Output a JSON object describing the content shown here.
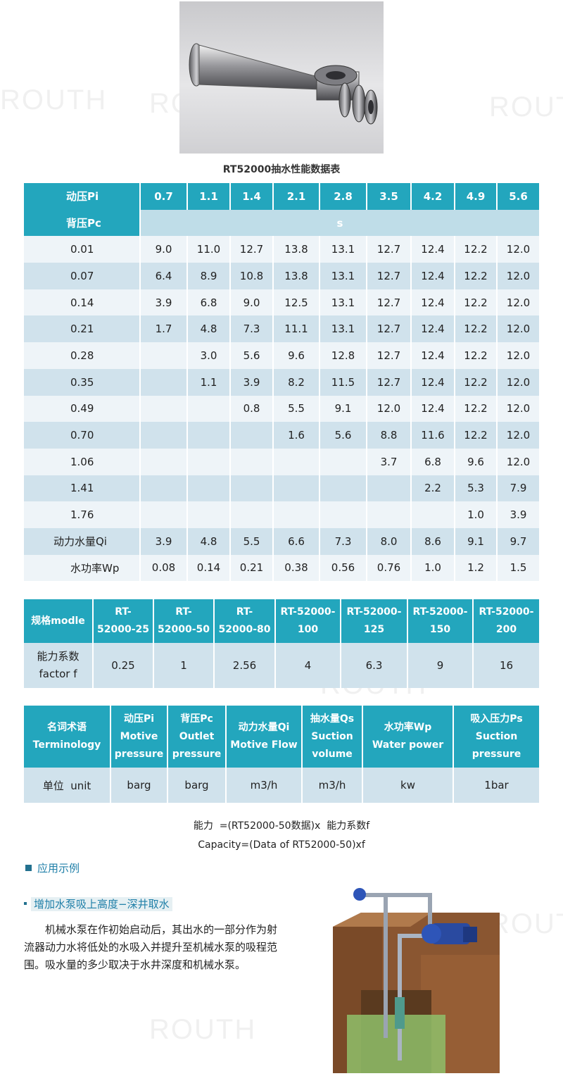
{
  "watermark": "ROUTH",
  "table_title": "RT52000抽水性能数据表",
  "perf_table": {
    "row_header_pi": "动压Pi",
    "row_header_pc": "背压Pc",
    "unit_s": "s",
    "pi_values": [
      "0.7",
      "1.1",
      "1.4",
      "2.1",
      "2.8",
      "3.5",
      "4.2",
      "4.9",
      "5.6"
    ],
    "rows": [
      {
        "pc": "0.01",
        "cells": [
          "9.0",
          "11.0",
          "12.7",
          "13.8",
          "13.1",
          "12.7",
          "12.4",
          "12.2",
          "12.0"
        ]
      },
      {
        "pc": "0.07",
        "cells": [
          "6.4",
          "8.9",
          "10.8",
          "13.8",
          "13.1",
          "12.7",
          "12.4",
          "12.2",
          "12.0"
        ]
      },
      {
        "pc": "0.14",
        "cells": [
          "3.9",
          "6.8",
          "9.0",
          "12.5",
          "13.1",
          "12.7",
          "12.4",
          "12.2",
          "12.0"
        ]
      },
      {
        "pc": "0.21",
        "cells": [
          "1.7",
          "4.8",
          "7.3",
          "11.1",
          "13.1",
          "12.7",
          "12.4",
          "12.2",
          "12.0"
        ]
      },
      {
        "pc": "0.28",
        "cells": [
          "",
          "3.0",
          "5.6",
          "9.6",
          "12.8",
          "12.7",
          "12.4",
          "12.2",
          "12.0"
        ]
      },
      {
        "pc": "0.35",
        "cells": [
          "",
          "1.1",
          "3.9",
          "8.2",
          "11.5",
          "12.7",
          "12.4",
          "12.2",
          "12.0"
        ]
      },
      {
        "pc": "0.49",
        "cells": [
          "",
          "",
          "0.8",
          "5.5",
          "9.1",
          "12.0",
          "12.4",
          "12.2",
          "12.0"
        ]
      },
      {
        "pc": "0.70",
        "cells": [
          "",
          "",
          "",
          "1.6",
          "5.6",
          "8.8",
          "11.6",
          "12.2",
          "12.0"
        ]
      },
      {
        "pc": "1.06",
        "cells": [
          "",
          "",
          "",
          "",
          "",
          "3.7",
          "6.8",
          "9.6",
          "12.0"
        ]
      },
      {
        "pc": "1.41",
        "cells": [
          "",
          "",
          "",
          "",
          "",
          "",
          "2.2",
          "5.3",
          "7.9"
        ]
      },
      {
        "pc": "1.76",
        "cells": [
          "",
          "",
          "",
          "",
          "",
          "",
          "",
          "1.0",
          "3.9"
        ]
      },
      {
        "pc": "动力水量Qi",
        "cells": [
          "3.9",
          "4.8",
          "5.5",
          "6.6",
          "7.3",
          "8.0",
          "8.6",
          "9.1",
          "9.7"
        ]
      },
      {
        "pc": "水功率Wp",
        "cells": [
          "0.08",
          "0.14",
          "0.21",
          "0.38",
          "0.56",
          "0.76",
          "1.0",
          "1.2",
          "1.5"
        ]
      }
    ]
  },
  "model_table": {
    "header_label": "规格modle",
    "models": [
      {
        "line1": "RT-",
        "line2": "52000-25"
      },
      {
        "line1": "RT-",
        "line2": "52000-50"
      },
      {
        "line1": "RT-",
        "line2": "52000-80"
      },
      {
        "line1": "RT-52000-",
        "line2": "100"
      },
      {
        "line1": "RT-52000-",
        "line2": "125"
      },
      {
        "line1": "RT-52000-",
        "line2": "150"
      },
      {
        "line1": "RT-52000-",
        "line2": "200"
      }
    ],
    "factor_label_line1": "能力系数",
    "factor_label_line2": "factor f",
    "factors": [
      "0.25",
      "1",
      "2.56",
      "4",
      "6.3",
      "9",
      "16"
    ]
  },
  "term_table": {
    "headers": [
      {
        "line1": "名词术语",
        "line2": "Terminology",
        "line3": ""
      },
      {
        "line1": "动压Pi",
        "line2": "Motive",
        "line3": "pressure"
      },
      {
        "line1": "背压Pc",
        "line2": "Outlet",
        "line3": "pressure"
      },
      {
        "line1": "动力水量Qi",
        "line2": "Motive Flow",
        "line3": ""
      },
      {
        "line1": "抽水量Qs",
        "line2": "Suction",
        "line3": "volume"
      },
      {
        "line1": "水功率Wp",
        "line2": "Water power",
        "line3": ""
      },
      {
        "line1": "吸入压力Ps",
        "line2": "Suction",
        "line3": "pressure"
      }
    ],
    "units": [
      "单位  unit",
      "barg",
      "barg",
      "m3/h",
      "m3/h",
      "kw",
      "1bar"
    ]
  },
  "formula_cn": "能力  =(RT52000-50数据)x  能力系数f",
  "formula_en": "Capacity=(Data of RT52000-50)xf",
  "section_title": "应用示例",
  "sub_title": "增加水泵吸上高度−深井取水",
  "paragraph": "机械水泵在作初始启动后，其出水的一部分作为射流器动力水将低处的水吸入并提升至机械水泵的吸程范围。吸水量的多少取决于水井深度和机械水泵。",
  "colors": {
    "header": "#23a6bd",
    "row_light": "#eef4f8",
    "row_dark": "#d0e2ec",
    "accent_text": "#1f7fa8"
  }
}
